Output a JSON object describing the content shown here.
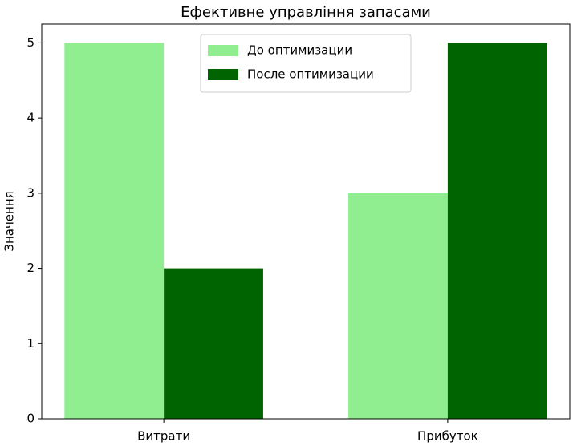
{
  "chart_data": {
    "type": "bar",
    "title": "Ефективне управління запасами",
    "y_label": "Значення",
    "categories": [
      "Витрати",
      "Прибуток"
    ],
    "series": [
      {
        "name": "До оптимизации",
        "color": "#90ee90",
        "values": [
          5,
          3
        ]
      },
      {
        "name": "После оптимизации",
        "color": "#006400",
        "values": [
          2,
          5
        ]
      }
    ],
    "ylim": [
      0,
      5.25
    ],
    "yticks": [
      0,
      1,
      2,
      3,
      4,
      5
    ],
    "legend": "upper center"
  }
}
